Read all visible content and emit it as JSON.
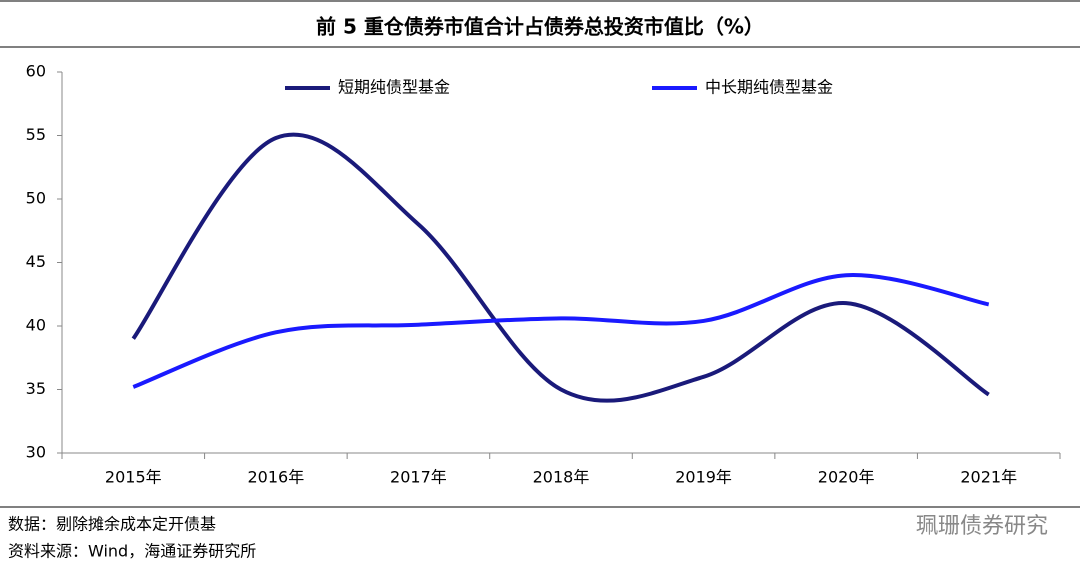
{
  "chart_data": {
    "type": "line",
    "title": "前 5 重仓债券市值合计占债券总投资市值比（%）",
    "categories": [
      "2015年",
      "2016年",
      "2017年",
      "2018年",
      "2019年",
      "2020年",
      "2021年"
    ],
    "series": [
      {
        "name": "短期纯债型基金",
        "color": "#1a1a7a",
        "values": [
          39,
          54.8,
          48,
          35,
          36,
          41.8,
          34.6
        ]
      },
      {
        "name": "中长期纯债型基金",
        "color": "#1a1aff",
        "values": [
          35.2,
          39.5,
          40.1,
          40.6,
          40.4,
          44,
          41.7
        ]
      }
    ],
    "ylim": [
      30,
      60
    ],
    "yticks": [
      30,
      35,
      40,
      45,
      50,
      55,
      60
    ],
    "smooth": true,
    "notes": [
      "数据：剔除摊余成本定开债基",
      "资料来源：Wind，海通证券研究所"
    ],
    "watermark": "珮珊债券研究"
  }
}
